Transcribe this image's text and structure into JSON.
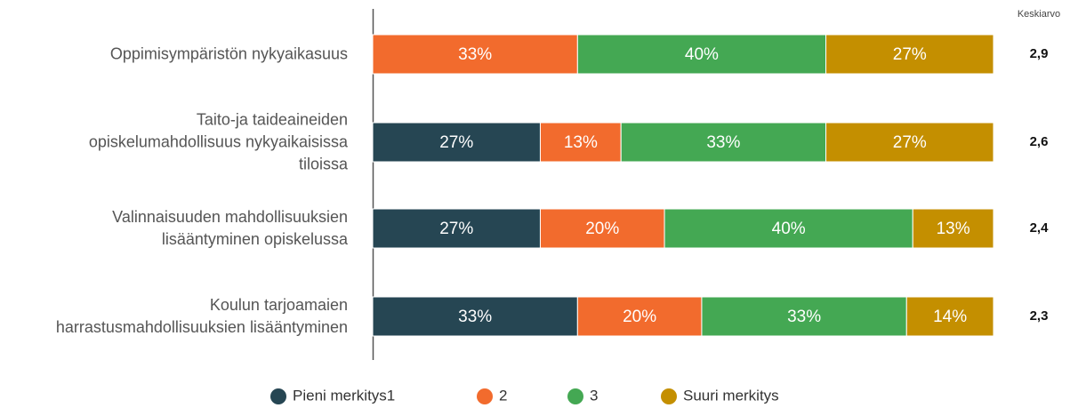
{
  "chart_data": {
    "type": "stacked_bar_horizontal",
    "categories": [
      "Oppimisympäristön nykyaikasuus",
      "Taito-ja taideaineiden\nopiskelumahdollisuus nykyaikaisissa\ntiloissa",
      "Valinnaisuuden mahdollisuuksien\nlisääntyminen opiskelussa",
      "Koulun tarjoamaien\nharrastusmahdollisuuksien lisääntyminen"
    ],
    "series": [
      {
        "name": "Pieni merkitys1",
        "color": "#264653",
        "values": [
          0,
          27,
          27,
          33
        ],
        "value_labels": [
          null,
          "27%",
          "27%",
          "33%"
        ]
      },
      {
        "name": "2",
        "color": "#f26b2d",
        "values": [
          33,
          13,
          20,
          20
        ],
        "value_labels": [
          "33%",
          "13%",
          "20%",
          "20%"
        ]
      },
      {
        "name": "3",
        "color": "#44a853",
        "values": [
          40,
          33,
          40,
          33
        ],
        "value_labels": [
          "40%",
          "33%",
          "40%",
          "33%"
        ]
      },
      {
        "name": "Suuri merkitys",
        "color": "#c48f00",
        "values": [
          27,
          27,
          13,
          14
        ],
        "value_labels": [
          "27%",
          "27%",
          "13%",
          "14%"
        ]
      }
    ],
    "xlim": [
      0,
      100
    ],
    "averages": {
      "title": "Keskiarvo",
      "values": [
        2.9,
        2.6,
        2.4,
        2.3
      ],
      "value_labels": [
        "2,9",
        "2,6",
        "2,4",
        "2,3"
      ]
    }
  }
}
